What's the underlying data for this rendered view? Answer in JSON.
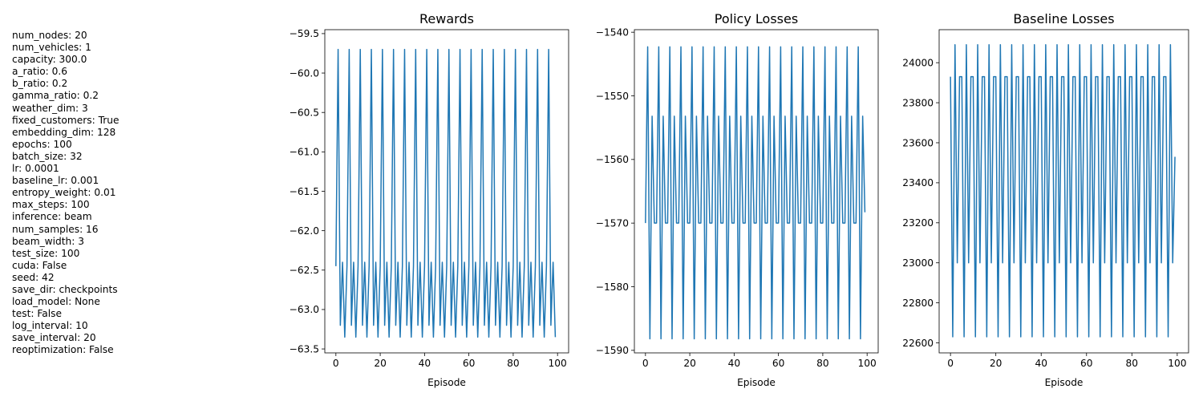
{
  "params": [
    {
      "text": "num_nodes: 20"
    },
    {
      "text": "num_vehicles: 1"
    },
    {
      "text": "capacity: 300.0"
    },
    {
      "text": "a_ratio: 0.6"
    },
    {
      "text": "b_ratio: 0.2"
    },
    {
      "text": "gamma_ratio: 0.2"
    },
    {
      "text": "weather_dim: 3"
    },
    {
      "text": "fixed_customers: True"
    },
    {
      "text": "embedding_dim: 128"
    },
    {
      "text": "epochs: 100"
    },
    {
      "text": "batch_size: 32"
    },
    {
      "text": "lr: 0.0001"
    },
    {
      "text": "baseline_lr: 0.001"
    },
    {
      "text": "entropy_weight: 0.01"
    },
    {
      "text": "max_steps: 100"
    },
    {
      "text": "inference: beam"
    },
    {
      "text": "num_samples: 16"
    },
    {
      "text": "beam_width: 3"
    },
    {
      "text": "test_size: 100"
    },
    {
      "text": "cuda: False"
    },
    {
      "text": "seed: 42"
    },
    {
      "text": "save_dir: checkpoints"
    },
    {
      "text": "load_model: None"
    },
    {
      "text": "test: False"
    },
    {
      "text": "log_interval: 10"
    },
    {
      "text": "save_interval: 20"
    },
    {
      "text": "reoptimization: False"
    }
  ],
  "chart_data": [
    {
      "type": "line",
      "title": "Rewards",
      "xlabel": "Episode",
      "ylabel": "",
      "color": "#1f77b4",
      "xlim": [
        -5,
        105
      ],
      "ylim": [
        -63.55,
        -59.45
      ],
      "xticks": [
        0,
        20,
        40,
        60,
        80,
        100
      ],
      "yticks": [
        -59.5,
        -60.0,
        -60.5,
        -61.0,
        -61.5,
        -62.0,
        -62.5,
        -63.0,
        -63.5
      ],
      "ytick_labels": [
        "−59.5",
        "−60.0",
        "−60.5",
        "−61.0",
        "−61.5",
        "−62.0",
        "−62.5",
        "−63.0",
        "−63.5"
      ],
      "pattern": [
        -62.45,
        -59.7,
        -63.2,
        -62.4,
        -63.35
      ],
      "last_value": -63.35,
      "n_points": 100
    },
    {
      "type": "line",
      "title": "Policy Losses",
      "xlabel": "Episode",
      "ylabel": "",
      "color": "#1f77b4",
      "xlim": [
        -5,
        105
      ],
      "ylim": [
        -1590.4,
        -1539.6
      ],
      "xticks": [
        0,
        20,
        40,
        60,
        80,
        100
      ],
      "yticks": [
        -1540,
        -1550,
        -1560,
        -1570,
        -1580,
        -1590
      ],
      "ytick_labels": [
        "−1540",
        "−1550",
        "−1560",
        "−1570",
        "−1580",
        "−1590"
      ],
      "pattern": [
        -1570,
        -1542.3,
        -1588.2,
        -1553.2,
        -1570
      ],
      "last_value": -1568.3,
      "n_points": 100
    },
    {
      "type": "line",
      "title": "Baseline Losses",
      "xlabel": "Episode",
      "ylabel": "",
      "color": "#1f77b4",
      "xlim": [
        -5,
        105
      ],
      "ylim": [
        22550,
        24165
      ],
      "xticks": [
        0,
        20,
        40,
        60,
        80,
        100
      ],
      "yticks": [
        22600,
        22800,
        23000,
        23200,
        23400,
        23600,
        23800,
        24000
      ],
      "ytick_labels": [
        "22600",
        "22800",
        "23000",
        "23200",
        "23400",
        "23600",
        "23800",
        "24000"
      ],
      "pattern": [
        23930,
        22630,
        24090,
        23000,
        23930
      ],
      "last_value": 23530,
      "n_points": 100
    }
  ]
}
